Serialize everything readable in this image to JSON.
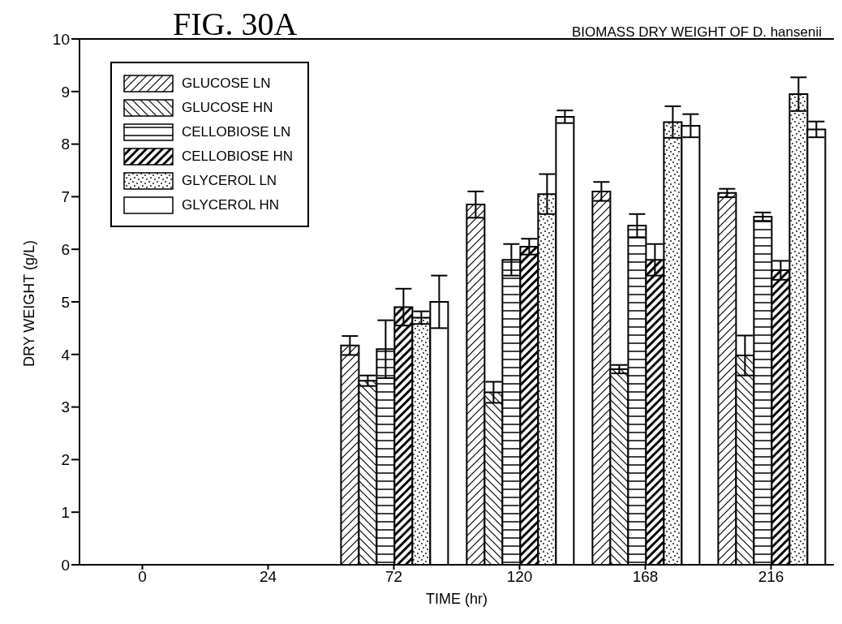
{
  "chart_data": {
    "type": "bar",
    "title": "BIOMASS DRY WEIGHT OF D. hansenii",
    "annotations": [
      "FIG. 30A"
    ],
    "xlabel": "TIME (hr)",
    "ylabel": "DRY WEIGHT (g/L)",
    "categories": [
      "0",
      "24",
      "72",
      "120",
      "168",
      "216"
    ],
    "series": [
      {
        "name": "GLUCOSE LN",
        "color": "#000000",
        "values": [
          null,
          null,
          4.17,
          6.85,
          7.1,
          7.07
        ],
        "errors": [
          null,
          null,
          0.18,
          0.25,
          0.18,
          0.08
        ]
      },
      {
        "name": "GLUCOSE HN",
        "color": "#000000",
        "values": [
          null,
          null,
          3.5,
          3.28,
          3.72,
          3.98
        ],
        "errors": [
          null,
          null,
          0.1,
          0.2,
          0.08,
          0.38
        ]
      },
      {
        "name": "CELLOBIOSE LN",
        "color": "#000000",
        "values": [
          null,
          null,
          4.1,
          5.8,
          6.45,
          6.62
        ],
        "errors": [
          null,
          null,
          0.55,
          0.3,
          0.22,
          0.08
        ]
      },
      {
        "name": "CELLOBIOSE HN",
        "color": "#000000",
        "values": [
          null,
          null,
          4.9,
          6.05,
          5.8,
          5.6
        ],
        "errors": [
          null,
          null,
          0.35,
          0.15,
          0.3,
          0.18
        ]
      },
      {
        "name": "GLYCEROL LN",
        "color": "#000000",
        "values": [
          null,
          null,
          4.7,
          7.05,
          8.42,
          8.95
        ],
        "errors": [
          null,
          null,
          0.12,
          0.38,
          0.3,
          0.32
        ]
      },
      {
        "name": "GLYCEROL HN",
        "color": "#000000",
        "values": [
          null,
          null,
          5.0,
          8.52,
          8.35,
          8.28
        ],
        "errors": [
          null,
          null,
          0.5,
          0.12,
          0.22,
          0.15
        ]
      }
    ],
    "ylim": [
      0,
      10
    ],
    "yticks": [
      0,
      1,
      2,
      3,
      4,
      5,
      6,
      7,
      8,
      9,
      10
    ],
    "grid": false,
    "legend": "top left"
  }
}
